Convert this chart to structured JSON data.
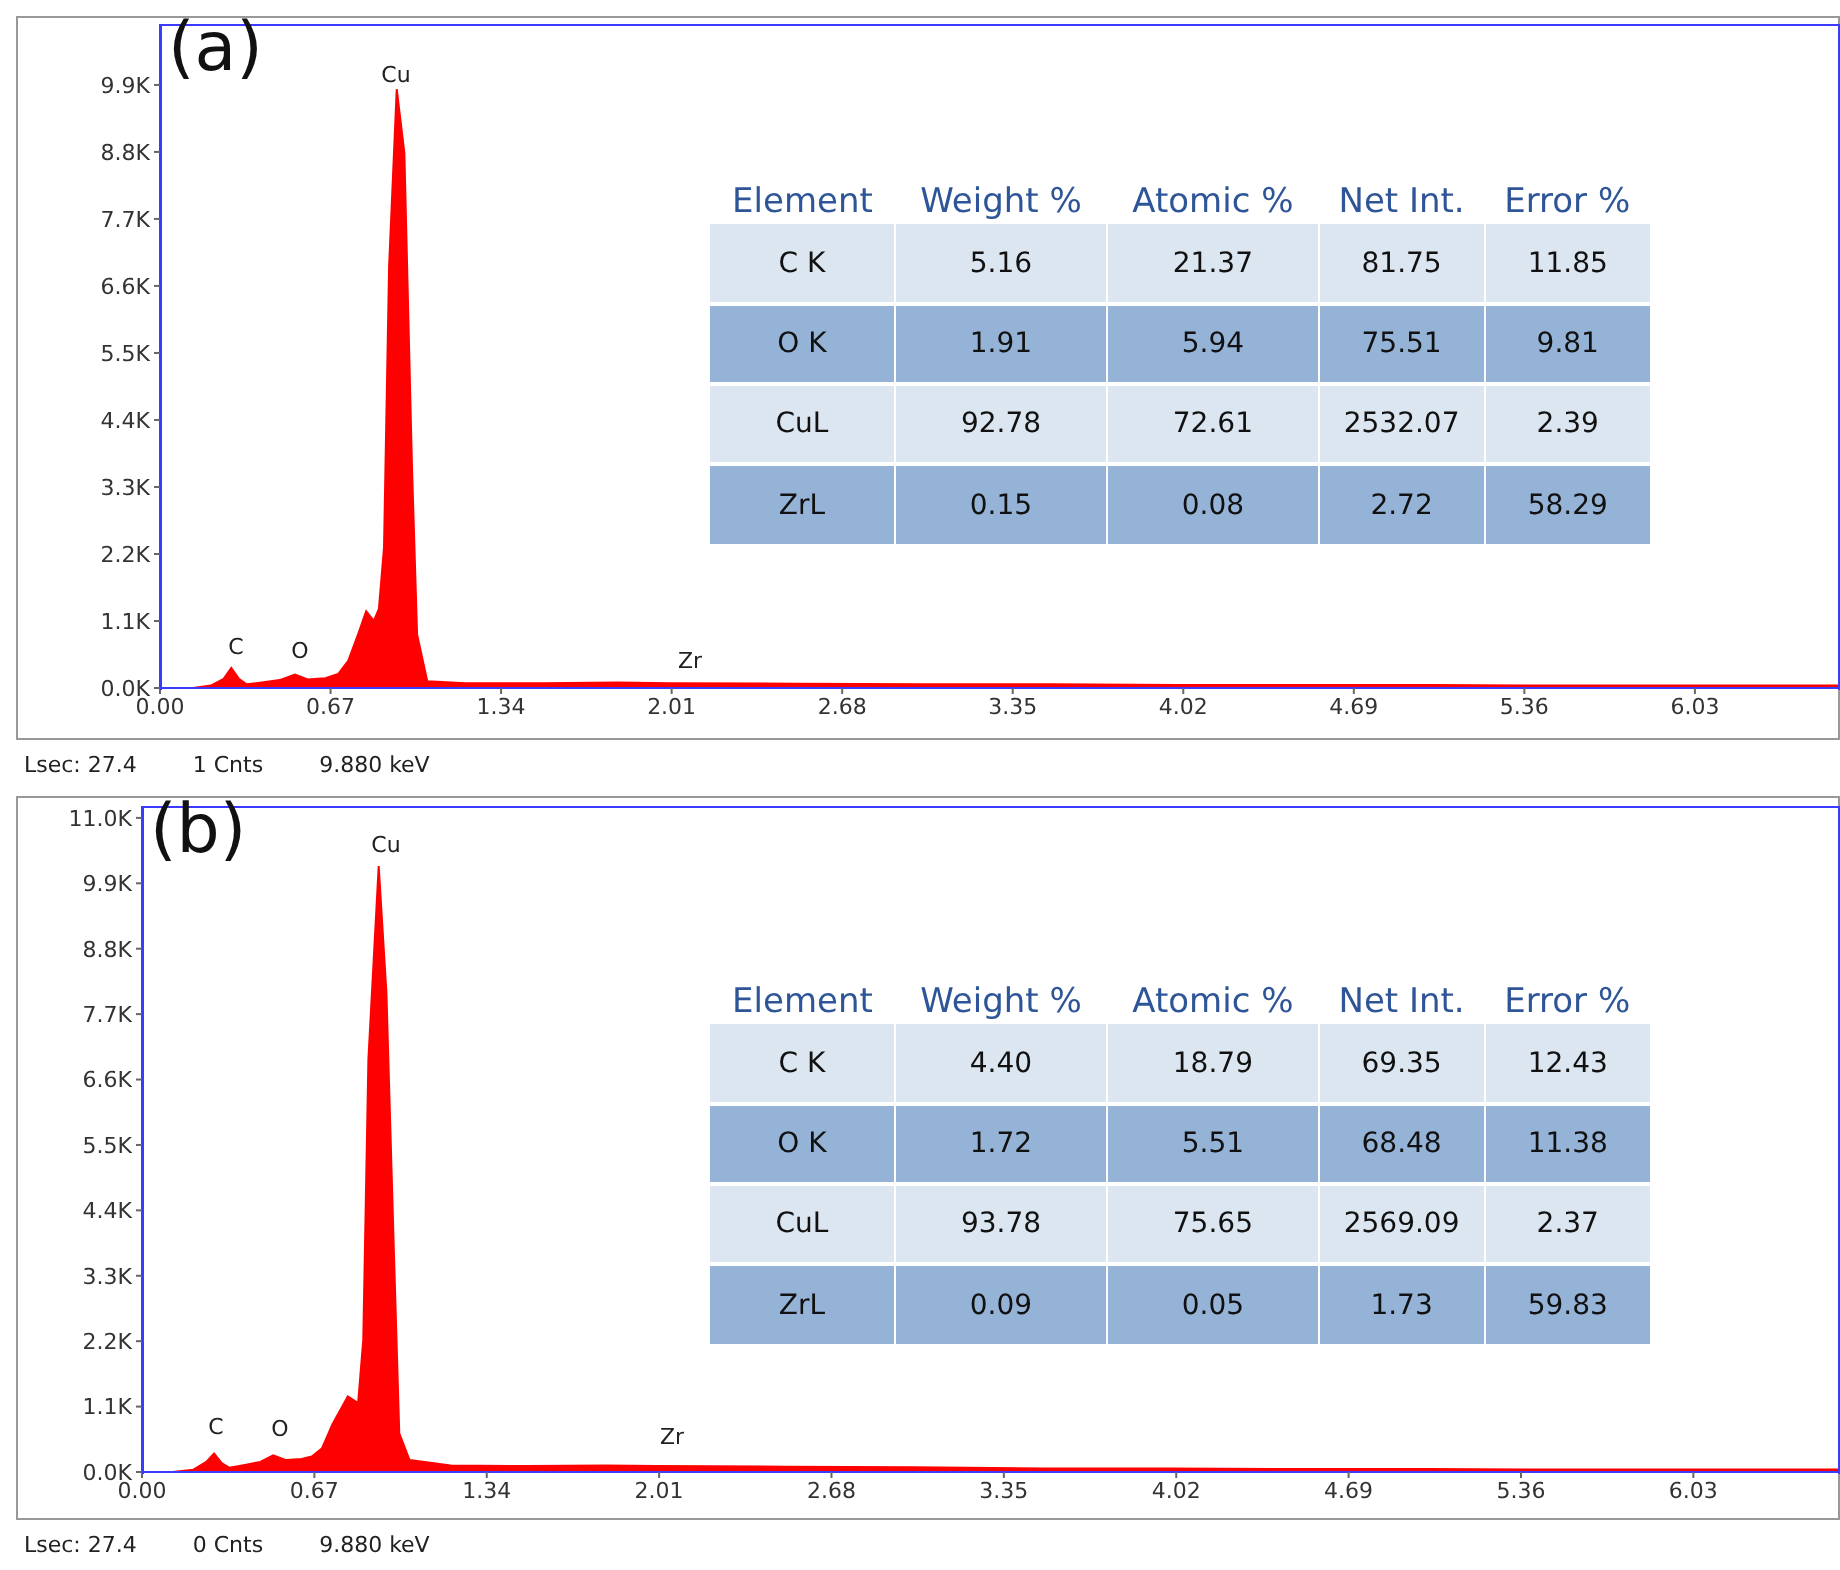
{
  "chart_data": [
    {
      "type": "area",
      "title": "(a)",
      "color": "#ff0000",
      "x": [
        0,
        0.13,
        0.2,
        0.25,
        0.28,
        0.31,
        0.34,
        0.4,
        0.47,
        0.53,
        0.58,
        0.65,
        0.7,
        0.74,
        0.78,
        0.81,
        0.84,
        0.86,
        0.88,
        0.9,
        0.93,
        0.96,
        0.99,
        1.01,
        1.05,
        1.2,
        1.5,
        1.8,
        2.0,
        2.5,
        3.0,
        3.5,
        4.0,
        4.5,
        5.0,
        5.5,
        6.0,
        6.6
      ],
      "values": [
        0,
        0,
        40,
        150,
        330,
        150,
        60,
        90,
        130,
        220,
        140,
        160,
        230,
        450,
        900,
        1260,
        1100,
        1300,
        2300,
        6920,
        9830,
        8780,
        3620,
        880,
        110,
        80,
        80,
        90,
        80,
        70,
        60,
        60,
        50,
        50,
        50,
        40,
        40,
        40
      ],
      "xlim": [
        0,
        6.6
      ],
      "xticks": [
        {
          "value": 0,
          "label": "0.00"
        },
        0.67,
        1.34,
        2.01,
        2.68,
        3.35,
        4.02,
        4.69,
        5.36,
        6.03
      ],
      "ylim": [
        0,
        10900
      ],
      "yticks": [
        {
          "value": 0,
          "label": "0.0K"
        },
        {
          "value": 1100,
          "label": "1.1K"
        },
        {
          "value": 2200,
          "label": "2.2K"
        },
        {
          "value": 3300,
          "label": "3.3K"
        },
        {
          "value": 4400,
          "label": "4.4K"
        },
        {
          "value": 5500,
          "label": "5.5K"
        },
        {
          "value": 6600,
          "label": "6.6K"
        },
        {
          "value": 7700,
          "label": "7.7K"
        },
        {
          "value": 8800,
          "label": "8.8K"
        },
        {
          "value": 9900,
          "label": "9.9K"
        }
      ],
      "annotations": [
        "Cu",
        "C",
        "O",
        "Zr",
        "Element",
        "Weight %",
        "Atomic %",
        "Net Int.",
        "Error %",
        "C K",
        "5.16",
        "21.37",
        "81.75",
        "11.85",
        "O K",
        "1.91",
        "5.94",
        "75.51",
        "9.81",
        "CuL",
        "92.78",
        "72.61",
        "2532.07",
        "2.39",
        "ZrL",
        "0.15",
        "0.08",
        "2.72",
        "58.29",
        "Lsec: 27.4",
        "1 Cnts",
        "9.880 keV"
      ]
    },
    {
      "type": "area",
      "title": "(b)",
      "color": "#ff0000",
      "x": [
        0,
        0.12,
        0.2,
        0.25,
        0.28,
        0.31,
        0.34,
        0.4,
        0.46,
        0.51,
        0.56,
        0.62,
        0.66,
        0.7,
        0.74,
        0.8,
        0.84,
        0.86,
        0.88,
        0.92,
        0.95,
        0.98,
        1.0,
        1.04,
        1.2,
        1.5,
        1.8,
        2.0,
        2.5,
        3.0,
        3.5,
        4.0,
        4.5,
        5.0,
        5.5,
        6.0,
        6.6
      ],
      "values": [
        0,
        0,
        40,
        170,
        310,
        150,
        70,
        120,
        170,
        280,
        200,
        220,
        260,
        400,
        800,
        1270,
        1160,
        2220,
        6940,
        10190,
        8060,
        3570,
        650,
        200,
        110,
        100,
        110,
        100,
        90,
        80,
        60,
        60,
        50,
        50,
        40,
        40,
        40
      ],
      "xlim": [
        0,
        6.6
      ],
      "xticks": [
        {
          "value": 0,
          "label": "0.00"
        },
        0.67,
        1.34,
        2.01,
        2.68,
        3.35,
        4.02,
        4.69,
        5.36,
        6.03
      ],
      "ylim": [
        0,
        11200
      ],
      "yticks": [
        {
          "value": 0,
          "label": "0.0K"
        },
        {
          "value": 1100,
          "label": "1.1K"
        },
        {
          "value": 2200,
          "label": "2.2K"
        },
        {
          "value": 3300,
          "label": "3.3K"
        },
        {
          "value": 4400,
          "label": "4.4K"
        },
        {
          "value": 5500,
          "label": "5.5K"
        },
        {
          "value": 6600,
          "label": "6.6K"
        },
        {
          "value": 7700,
          "label": "7.7K"
        },
        {
          "value": 8800,
          "label": "8.8K"
        },
        {
          "value": 9900,
          "label": "9.9K"
        },
        {
          "value": 11000,
          "label": "11.0K"
        }
      ],
      "annotations": [
        "Cu",
        "C",
        "O",
        "Zr",
        "Element",
        "Weight %",
        "Atomic %",
        "Net Int.",
        "Error %",
        "C K",
        "4.40",
        "18.79",
        "69.35",
        "12.43",
        "O K",
        "1.72",
        "5.51",
        "68.48",
        "11.38",
        "CuL",
        "93.78",
        "75.65",
        "2569.09",
        "2.37",
        "ZrL",
        "0.09",
        "0.05",
        "1.73",
        "59.83",
        "Lsec: 27.4",
        "0 Cnts",
        "9.880 keV"
      ]
    }
  ]
}
